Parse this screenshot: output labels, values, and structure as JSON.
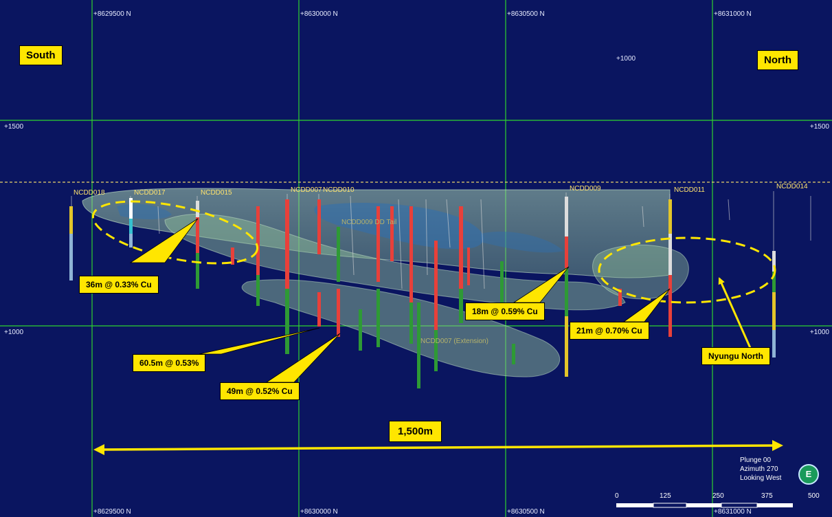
{
  "direction_labels": {
    "south": "South",
    "north": "North"
  },
  "grid": {
    "northings_top": [
      "+8629500 N",
      "+8630000 N",
      "+8630500 N",
      "+8631000 N"
    ],
    "northings_bottom": [
      "+8629500 N",
      "+8630000 N",
      "+8630500 N",
      "+8631000 N"
    ],
    "elevation_left": [
      "+1500",
      "+1000"
    ],
    "elevation_right": [
      "+1500",
      "+1000"
    ],
    "elevation_top": "+1000"
  },
  "drillholes": {
    "ncdd018": "NCDD018",
    "ncdd017": "NCDD017",
    "ncdd015": "NCDD015",
    "ncdd007": "NCDD007",
    "ncdd010": "NCDD010",
    "ncdd009": "NCDD009",
    "ncdd011": "NCDD011",
    "ncdd014": "NCDD014",
    "ncdd009_tail": "NCDD009 DD Tail",
    "ncdd007_ext": "NCDD007 (Extension)"
  },
  "callouts": {
    "c1": "36m @ 0.33% Cu",
    "c2": "60.5m @ 0.53%",
    "c3": "49m @ 0.52% Cu",
    "c4": "18m @ 0.59% Cu",
    "c5": "21m @ 0.70% Cu",
    "c6": "Nyungu North"
  },
  "scale": {
    "label": "1,500m",
    "ticks": [
      "0",
      "125",
      "250",
      "375",
      "500"
    ]
  },
  "view": {
    "plunge": "Plunge 00",
    "azimuth": "Azimuth 270",
    "looking": "Looking West",
    "compass": "E"
  },
  "colors": {
    "background": "#0a1560",
    "grid": "#2fd32f",
    "callout": "#ffe600",
    "mineralised": "#e8403a",
    "shell": "#9bc7a0"
  }
}
